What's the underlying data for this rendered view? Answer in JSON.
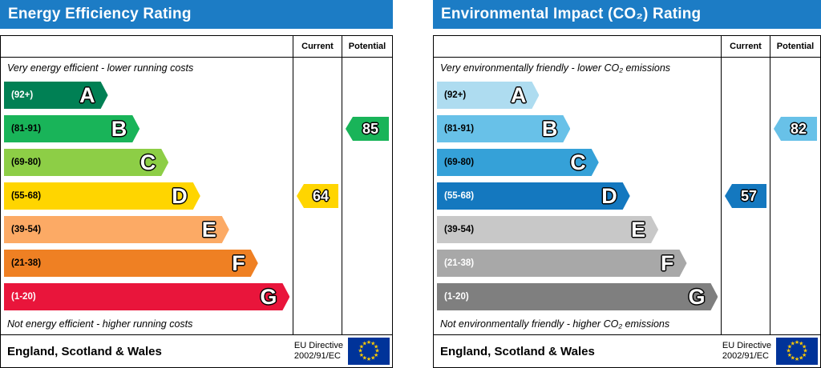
{
  "chart_data": [
    {
      "type": "bar",
      "title": "Energy Efficiency Rating",
      "header_color": "#1c7cc5",
      "column_headers": [
        "Current",
        "Potential"
      ],
      "top_caption": "Very energy efficient - lower running costs",
      "bottom_caption": "Not energy efficient - higher running costs",
      "categories": [
        "A",
        "B",
        "C",
        "D",
        "E",
        "F",
        "G"
      ],
      "ranges": [
        "(92+)",
        "(81-91)",
        "(69-80)",
        "(55-68)",
        "(39-54)",
        "(21-38)",
        "(1-20)"
      ],
      "bar_widths_pct": [
        36,
        47,
        57,
        68,
        78,
        88,
        99
      ],
      "colors": [
        "#008054",
        "#19b459",
        "#8dce46",
        "#ffd500",
        "#fcaa65",
        "#ef8023",
        "#e9153b"
      ],
      "range_label_colors": [
        "#ffffff",
        "#000000",
        "#000000",
        "#000000",
        "#000000",
        "#000000",
        "#ffffff"
      ],
      "current": {
        "value": 64,
        "band": "D",
        "color": "#ffd500"
      },
      "potential": {
        "value": 85,
        "band": "B",
        "color": "#19b459"
      },
      "footer_region": "England, Scotland & Wales",
      "footer_directive": [
        "EU Directive",
        "2002/91/EC"
      ]
    },
    {
      "type": "bar",
      "title": "Environmental Impact (CO₂) Rating",
      "header_color": "#1c7cc5",
      "column_headers": [
        "Current",
        "Potential"
      ],
      "top_caption": "Very environmentally friendly - lower CO₂ emissions",
      "bottom_caption": "Not environmentally friendly - higher CO₂ emissions",
      "categories": [
        "A",
        "B",
        "C",
        "D",
        "E",
        "F",
        "G"
      ],
      "ranges": [
        "(92+)",
        "(81-91)",
        "(69-80)",
        "(55-68)",
        "(39-54)",
        "(21-38)",
        "(1-20)"
      ],
      "bar_widths_pct": [
        36,
        47,
        57,
        68,
        78,
        88,
        99
      ],
      "colors": [
        "#aedcf0",
        "#68c1e8",
        "#35a1d8",
        "#1478bf",
        "#c8c8c8",
        "#a8a8a8",
        "#7f7f7f"
      ],
      "range_label_colors": [
        "#000000",
        "#000000",
        "#000000",
        "#ffffff",
        "#000000",
        "#ffffff",
        "#ffffff"
      ],
      "current": {
        "value": 57,
        "band": "D",
        "color": "#1478bf"
      },
      "potential": {
        "value": 82,
        "band": "B",
        "color": "#68c1e8"
      },
      "footer_region": "England, Scotland & Wales",
      "footer_directive": [
        "EU Directive",
        "2002/91/EC"
      ]
    }
  ]
}
